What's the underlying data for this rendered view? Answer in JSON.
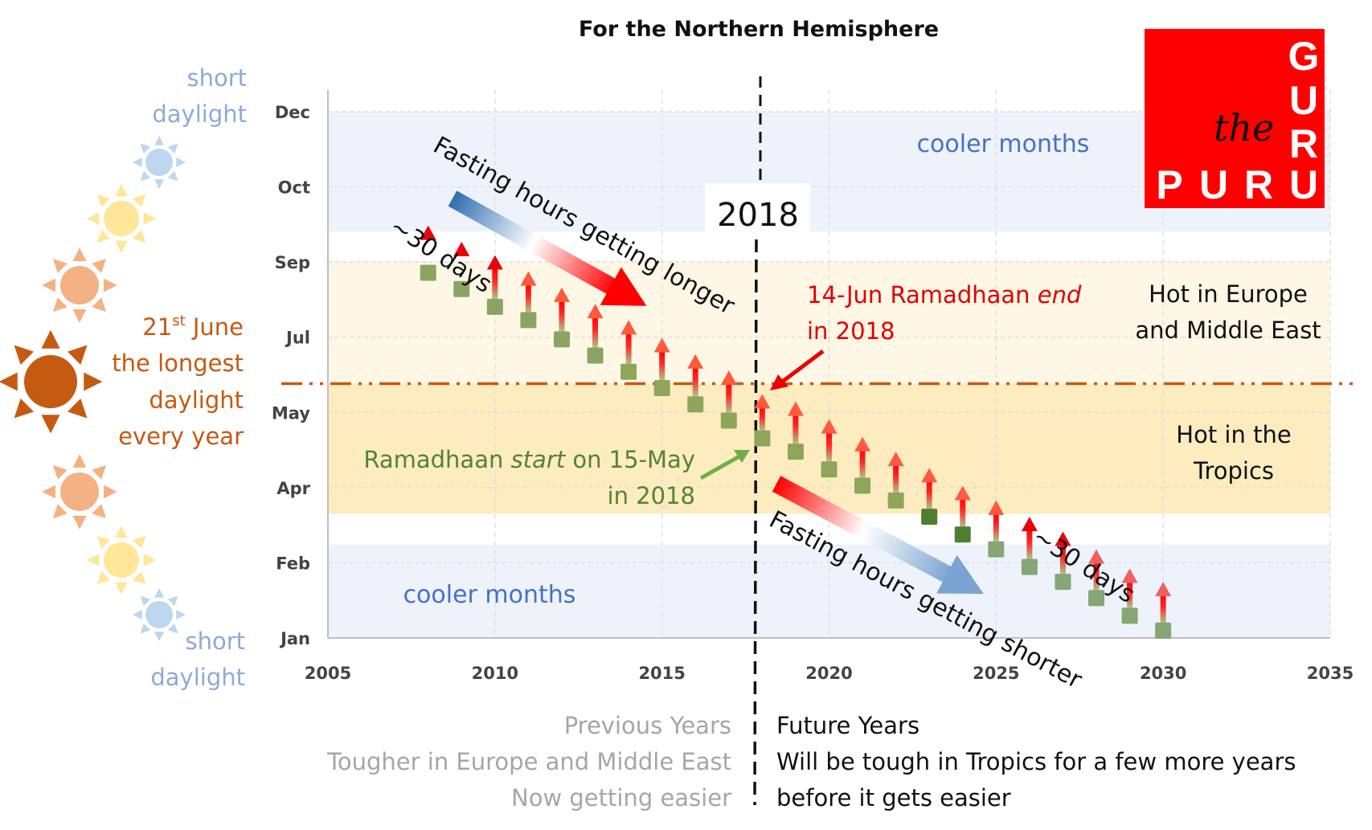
{
  "chart_data": {
    "type": "scatter",
    "title": "For the Northern Hemisphere",
    "xlabel": "",
    "ylabel": "",
    "x_ticks": [
      "2005",
      "2010",
      "2015",
      "2020",
      "2025",
      "2030",
      "2035"
    ],
    "xlim": [
      2005,
      2035
    ],
    "y_ticks": [
      "Jan",
      "Feb",
      "Apr",
      "May",
      "Jul",
      "Sep",
      "Oct",
      "Dec"
    ],
    "y_unit": "day of year",
    "ylim": [
      0,
      356
    ],
    "grid": true,
    "series": [
      {
        "name": "Ramadhaan start",
        "marker": "square",
        "x": [
          2008,
          2009,
          2010,
          2011,
          2012,
          2013,
          2014,
          2015,
          2016,
          2017,
          2018,
          2019,
          2020,
          2021,
          2022,
          2023,
          2024,
          2025,
          2026,
          2027,
          2028,
          2029,
          2030
        ],
        "values": [
          247,
          236,
          224,
          215,
          202,
          191,
          180,
          169,
          158,
          147,
          135,
          126,
          114,
          103,
          93,
          82,
          70,
          60,
          48,
          38,
          27,
          15,
          5
        ]
      },
      {
        "name": "Ramadhaan end",
        "marker": "arrow-up",
        "x": [
          2008,
          2009,
          2010,
          2011,
          2012,
          2013,
          2014,
          2015,
          2016,
          2017,
          2018,
          2019,
          2020,
          2021,
          2022,
          2023,
          2024,
          2025,
          2026,
          2027,
          2028,
          2029,
          2030
        ],
        "values": [
          279,
          268,
          259,
          248,
          237,
          226,
          215,
          203,
          192,
          181,
          165,
          160,
          148,
          136,
          126,
          115,
          103,
          93,
          82,
          72,
          60,
          47,
          38
        ]
      }
    ],
    "dark_start_years": [
      2023,
      2024
    ],
    "bands": [
      {
        "name": "cooler months (late year)",
        "from": 275,
        "to": 356,
        "color": "#eef2fa"
      },
      {
        "name": "Hot in Europe and Middle East",
        "from": 172,
        "to": 255,
        "color": "#fff7e6"
      },
      {
        "name": "Hot in the Tropics",
        "from": 84,
        "to": 172,
        "color": "#fdecbf"
      },
      {
        "name": "cooler months (early year)",
        "from": 0,
        "to": 63,
        "color": "#eef2fa"
      }
    ],
    "reference_lines": [
      {
        "name": "21st June longest daylight",
        "orientation": "horizontal",
        "value": 172,
        "style": "dash-dot",
        "color": "#c55a11"
      },
      {
        "name": "2018",
        "orientation": "vertical",
        "value": 2018,
        "style": "dashed",
        "color": "#000000"
      }
    ],
    "annotations": {
      "year_box": "2018",
      "arrow_longer": "Fasting hours getting longer",
      "arrow_shorter": "Fasting hours getting shorter",
      "days_early": "~30 days",
      "days_late": "~30 days",
      "end_note_line1_prefix": "14-Jun Ramadhaan ",
      "end_note_line1_em": "end",
      "end_note_line2": "in 2018",
      "start_note_line1_prefix": "Ramadhaan ",
      "start_note_line1_em": "start",
      "start_note_line1_suffix": " on 15-May",
      "start_note_line2": "in 2018",
      "band_cool_top": "cooler months",
      "band_cool_bottom": "cooler months",
      "band_europe_1": "Hot in Europe",
      "band_europe_2": "and Middle East",
      "band_tropics_1": "Hot in the",
      "band_tropics_2": "Tropics"
    },
    "colors": {
      "start_marker": "#8fa55a",
      "start_marker_dark": "#4f7f2e",
      "start_marker_pale": "#86a676",
      "end_arrow": "#ff5a3c",
      "end_arrow_past": "#e8000b"
    }
  },
  "side_panel": {
    "top_label_1": "short",
    "top_label_2": "daylight",
    "mid_label_1_num": "21",
    "mid_label_1_sup": "st",
    "mid_label_1_rest": " June",
    "mid_label_2": "the longest",
    "mid_label_3": "daylight",
    "mid_label_4": "every year",
    "bottom_label_1": "short",
    "bottom_label_2": "daylight",
    "sun_colors": [
      "#bdd7ee",
      "#ffe699",
      "#f4b183",
      "#c55a11",
      "#f4b183",
      "#ffe699",
      "#bdd7ee"
    ]
  },
  "footer": {
    "left_1": "Previous Years",
    "left_2": "Tougher in Europe and Middle East",
    "left_3": "Now getting easier",
    "right_1": "Future Years",
    "right_2": "Will be tough in Tropics for a few more years",
    "right_3": "before it gets easier"
  },
  "logo": {
    "the": "the",
    "letters_col": [
      "G",
      "U",
      "R"
    ],
    "letters_row": [
      "P",
      "U",
      "R",
      "U"
    ],
    "background": "#ff0000"
  }
}
